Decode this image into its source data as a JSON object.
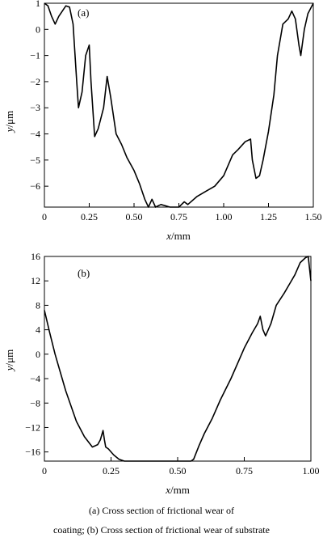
{
  "chart_data": [
    {
      "type": "line",
      "panel_label": "(a)",
      "xlabel_var": "x",
      "xlabel_unit": "/mm",
      "ylabel_var": "y",
      "ylabel_unit": "/μm",
      "xlim": [
        0,
        1.5
      ],
      "ylim": [
        -6.8,
        1.0
      ],
      "xticks": [
        0,
        0.25,
        0.5,
        0.75,
        1.0,
        1.25,
        1.5
      ],
      "xtick_labels": [
        "0",
        "0.25",
        "0.50",
        "0.75",
        "1.00",
        "1.25",
        "1.50"
      ],
      "yticks": [
        1,
        0,
        -1,
        -2,
        -3,
        -4,
        -5,
        -6
      ],
      "ytick_labels": [
        "1",
        "0",
        "−1",
        "−2",
        "−3",
        "−4",
        "−5",
        "−6"
      ],
      "grid": false,
      "series": [
        {
          "x": [
            0,
            0.02,
            0.04,
            0.06,
            0.08,
            0.1,
            0.12,
            0.14,
            0.16,
            0.18,
            0.19,
            0.21,
            0.23,
            0.25,
            0.26,
            0.28,
            0.3,
            0.33,
            0.35,
            0.37,
            0.4,
            0.43,
            0.46,
            0.5,
            0.53,
            0.56,
            0.58,
            0.6,
            0.62,
            0.65,
            0.7,
            0.75,
            0.78,
            0.8,
            0.85,
            0.9,
            0.95,
            1.0,
            1.05,
            1.08,
            1.12,
            1.15,
            1.16,
            1.18,
            1.2,
            1.22,
            1.25,
            1.28,
            1.3,
            1.33,
            1.36,
            1.38,
            1.4,
            1.42,
            1.43,
            1.45,
            1.47,
            1.5
          ],
          "y": [
            1.0,
            0.9,
            0.5,
            0.2,
            0.5,
            0.7,
            0.9,
            0.85,
            0.2,
            -2.0,
            -3.0,
            -2.4,
            -1.0,
            -0.6,
            -2.0,
            -4.1,
            -3.8,
            -3.0,
            -1.8,
            -2.6,
            -4.0,
            -4.4,
            -4.9,
            -5.4,
            -5.9,
            -6.5,
            -6.8,
            -6.5,
            -6.8,
            -6.7,
            -6.8,
            -6.8,
            -6.6,
            -6.7,
            -6.4,
            -6.2,
            -6.0,
            -5.6,
            -4.8,
            -4.6,
            -4.3,
            -4.2,
            -5.0,
            -5.7,
            -5.6,
            -5.0,
            -3.9,
            -2.5,
            -1.0,
            0.2,
            0.4,
            0.7,
            0.4,
            -0.6,
            -1.0,
            0.0,
            0.6,
            1.0
          ]
        }
      ]
    },
    {
      "type": "line",
      "panel_label": "(b)",
      "xlabel_var": "x",
      "xlabel_unit": "/mm",
      "ylabel_var": "y",
      "ylabel_unit": "/μm",
      "xlim": [
        0,
        1.0
      ],
      "ylim": [
        -17.5,
        16
      ],
      "xticks": [
        0,
        0.25,
        0.5,
        0.75,
        1.0
      ],
      "xtick_labels": [
        "0",
        "0.25",
        "0.50",
        "0.75",
        "1.00"
      ],
      "yticks": [
        16,
        12,
        8,
        4,
        0,
        -4,
        -8,
        -12,
        -16
      ],
      "ytick_labels": [
        "16",
        "12",
        "8",
        "4",
        "0",
        "−4",
        "−8",
        "−12",
        "−16"
      ],
      "grid": false,
      "series": [
        {
          "x": [
            0,
            0.02,
            0.04,
            0.06,
            0.08,
            0.1,
            0.12,
            0.15,
            0.18,
            0.2,
            0.21,
            0.22,
            0.225,
            0.23,
            0.24,
            0.26,
            0.28,
            0.3,
            0.35,
            0.4,
            0.45,
            0.5,
            0.55,
            0.56,
            0.58,
            0.6,
            0.63,
            0.66,
            0.7,
            0.73,
            0.75,
            0.78,
            0.8,
            0.81,
            0.82,
            0.83,
            0.85,
            0.87,
            0.9,
            0.92,
            0.94,
            0.96,
            0.98,
            0.99,
            1.0
          ],
          "y": [
            7.2,
            3.5,
            0.0,
            -3.0,
            -6.0,
            -8.5,
            -11.0,
            -13.5,
            -15.2,
            -14.8,
            -14.0,
            -12.5,
            -14.0,
            -15.2,
            -15.5,
            -16.5,
            -17.2,
            -17.5,
            -17.5,
            -17.5,
            -17.5,
            -17.5,
            -17.5,
            -17.2,
            -15.0,
            -13.0,
            -10.5,
            -7.5,
            -4.0,
            -1.0,
            1.0,
            3.5,
            5.0,
            6.2,
            4.0,
            3.0,
            5.0,
            8.0,
            10.0,
            11.5,
            13.0,
            15.0,
            15.8,
            16.0,
            12.0
          ]
        }
      ]
    }
  ],
  "caption": {
    "line1": "(a) Cross section of frictional wear of",
    "line2": "coating; (b) Cross section of frictional wear of substrate"
  }
}
